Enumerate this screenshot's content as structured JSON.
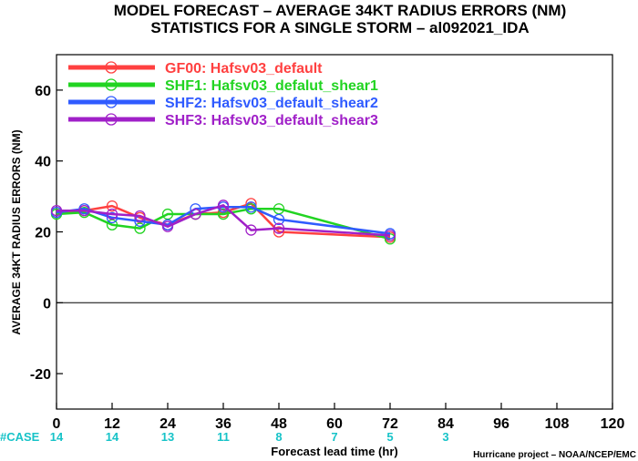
{
  "chart_data": {
    "type": "line",
    "title_line1": "MODEL FORECAST – AVERAGE 34KT RADIUS ERRORS (NM)",
    "title_line2": "STATISTICS FOR A SINGLE STORM – al092021_IDA",
    "ylabel": "AVERAGE 34KT RADIUS ERRORS (NM)",
    "xlabel": "Forecast lead time (hr)",
    "credit": "Hurricane project – NOAA/NCEP/EMC",
    "xlim": [
      0,
      120
    ],
    "ylim": [
      -30,
      70
    ],
    "x_ticks": [
      0,
      12,
      24,
      36,
      48,
      60,
      72,
      84,
      96,
      108,
      120
    ],
    "y_ticks": [
      -20,
      0,
      20,
      40,
      60
    ],
    "zero_line": 0,
    "case_label": "#CASE",
    "case_color": "#17c3c8",
    "cases": [
      {
        "x": 0,
        "n": "14"
      },
      {
        "x": 12,
        "n": "14"
      },
      {
        "x": 24,
        "n": "13"
      },
      {
        "x": 36,
        "n": "11"
      },
      {
        "x": 48,
        "n": "8"
      },
      {
        "x": 60,
        "n": "7"
      },
      {
        "x": 72,
        "n": "5"
      },
      {
        "x": 84,
        "n": "3"
      }
    ],
    "series": [
      {
        "name": "GF00: Hafsv03_default",
        "color": "#ff4040",
        "x": [
          0,
          6,
          12,
          18,
          24,
          30,
          36,
          42,
          48,
          72
        ],
        "values": [
          25.5,
          26,
          27.3,
          24,
          22,
          25,
          25.5,
          28,
          20,
          18.5
        ]
      },
      {
        "name": "SHF1: Hafsv03_defalut_shear1",
        "color": "#22d422",
        "x": [
          0,
          6,
          12,
          18,
          24,
          30,
          36,
          42,
          48,
          72
        ],
        "values": [
          25,
          25.5,
          22,
          21,
          25,
          25,
          25,
          26.5,
          26.5,
          18
        ]
      },
      {
        "name": "SHF2: Hafsv03_default_shear2",
        "color": "#2f5bff",
        "x": [
          0,
          6,
          12,
          18,
          24,
          30,
          36,
          42,
          48,
          72
        ],
        "values": [
          25.5,
          26.5,
          24,
          23,
          22,
          26.5,
          27,
          27,
          23.5,
          19.5
        ]
      },
      {
        "name": "SHF3: Hafsv03_default_shear3",
        "color": "#a020c8",
        "x": [
          0,
          6,
          12,
          18,
          24,
          30,
          36,
          42,
          48,
          72
        ],
        "values": [
          26,
          26,
          25,
          24.5,
          21.5,
          25,
          27.5,
          20.5,
          21,
          19
        ]
      }
    ]
  }
}
